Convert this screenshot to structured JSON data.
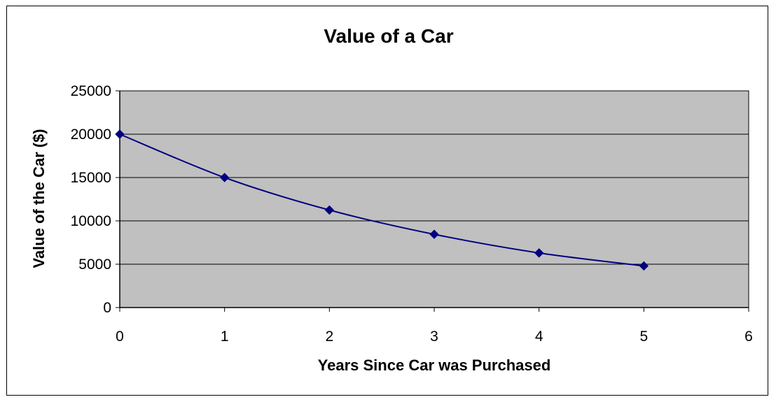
{
  "colors": {
    "plot_background": "#c0c0c0",
    "series_line": "#000080",
    "gridline": "#000000",
    "axis": "#000000"
  },
  "chart_data": {
    "type": "scatter",
    "title": "Value of a Car",
    "xlabel": "Years Since Car was Purchased",
    "ylabel": "Value of the Car ($)",
    "xlim": [
      0,
      6
    ],
    "ylim": [
      0,
      25000
    ],
    "xticks": [
      0,
      1,
      2,
      3,
      4,
      5,
      6
    ],
    "yticks": [
      0,
      5000,
      10000,
      15000,
      20000,
      25000
    ],
    "grid": "horizontal",
    "legend": "none",
    "smoothed_line": true,
    "marker": "diamond",
    "series": [
      {
        "x": [
          0,
          1,
          2,
          3,
          4,
          5
        ],
        "y": [
          20000,
          15000,
          11250,
          8450,
          6300,
          4800
        ]
      }
    ]
  }
}
